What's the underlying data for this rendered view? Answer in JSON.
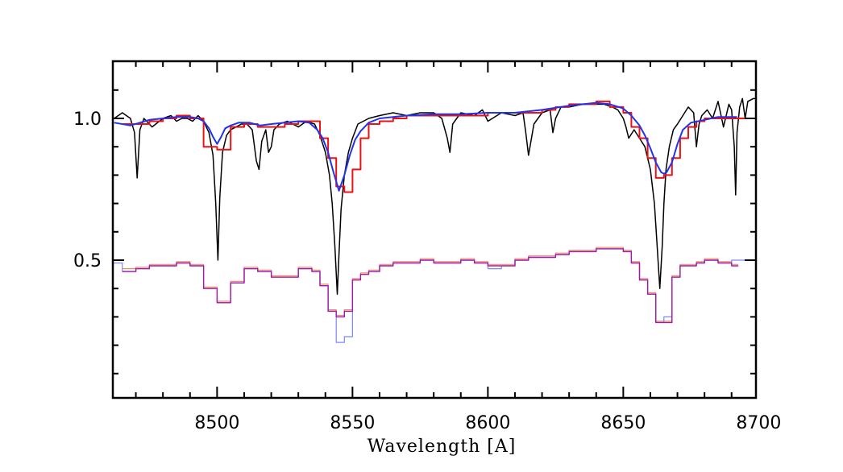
{
  "chart_data": {
    "type": "line",
    "title": "",
    "xlabel": "Wavelength [A]",
    "ylabel": "",
    "xlim": [
      8460,
      8700
    ],
    "ylim": [
      0.0,
      1.2
    ],
    "grid": false,
    "x_ticks": [
      8500,
      8550,
      8600,
      8650,
      8700
    ],
    "x_tick_labels": [
      "8500",
      "8550",
      "8600",
      "8650",
      "8700"
    ],
    "y_ticks": [
      0.5,
      1.0
    ],
    "y_tick_labels": [
      "0.5",
      "1.0"
    ],
    "colors": {
      "observed": "#000000",
      "blue_model": "#2233ee",
      "red_binned": "#ee1111",
      "lower_blue": "#7f86ff",
      "lower_purple": "#a01aa6",
      "lower_salmon": "#f08a6a"
    },
    "series": [
      {
        "style": "black-line",
        "color": "#000000",
        "x": [
          8462,
          8465,
          8468,
          8469.5,
          8470.5,
          8471.5,
          8473,
          8476,
          8480,
          8483,
          8485,
          8487,
          8489,
          8491,
          8493,
          8495,
          8497,
          8498.5,
          8499.5,
          8500.3,
          8501,
          8502,
          8503.5,
          8505,
          8507,
          8509,
          8511,
          8513,
          8514.5,
          8515.5,
          8516.5,
          8518,
          8519,
          8520,
          8521,
          8523,
          8526,
          8530,
          8533,
          8536,
          8538,
          8540,
          8541.5,
          8542.5,
          8543.5,
          8544.4,
          8545,
          8545.8,
          8547,
          8548.5,
          8550,
          8552,
          8554,
          8556,
          8560,
          8565,
          8570,
          8575,
          8580,
          8583,
          8585,
          8586,
          8587,
          8590,
          8595,
          8598,
          8600,
          8605,
          8610,
          8613,
          8614,
          8615,
          8617,
          8620,
          8623,
          8624,
          8625,
          8627,
          8630,
          8635,
          8640,
          8643,
          8646,
          8648,
          8650,
          8651,
          8652,
          8654,
          8656,
          8658,
          8660,
          8661.5,
          8662.5,
          8663.5,
          8664.4,
          8665,
          8665.8,
          8667,
          8668.5,
          8670,
          8672,
          8674,
          8676,
          8677,
          8678,
          8679,
          8681,
          8683,
          8685,
          8687,
          8689,
          8690,
          8691,
          8691.5,
          8692,
          8693,
          8694,
          8695,
          8696,
          8698,
          8700
        ],
        "y": [
          1.0,
          1.02,
          1.0,
          0.95,
          0.79,
          0.96,
          1.0,
          0.97,
          1.0,
          1.01,
          0.99,
          1.0,
          1.0,
          0.99,
          1.01,
          0.99,
          0.95,
          0.87,
          0.7,
          0.5,
          0.72,
          0.88,
          0.94,
          0.96,
          0.97,
          0.98,
          0.98,
          0.96,
          0.85,
          0.82,
          0.92,
          0.96,
          0.88,
          0.9,
          0.96,
          0.98,
          0.99,
          0.97,
          0.99,
          0.98,
          0.94,
          0.88,
          0.8,
          0.7,
          0.55,
          0.38,
          0.52,
          0.68,
          0.8,
          0.88,
          0.93,
          0.98,
          0.99,
          1.0,
          1.01,
          1.02,
          1.01,
          1.02,
          1.02,
          1.0,
          0.93,
          0.88,
          0.98,
          1.02,
          1.01,
          1.03,
          0.99,
          1.02,
          1.01,
          1.02,
          0.95,
          0.87,
          0.98,
          1.02,
          1.03,
          0.95,
          1.0,
          1.04,
          1.04,
          1.05,
          1.05,
          1.05,
          1.04,
          1.03,
          1.0,
          0.97,
          0.93,
          0.96,
          0.93,
          0.9,
          0.82,
          0.7,
          0.55,
          0.4,
          0.55,
          0.7,
          0.82,
          0.9,
          0.96,
          0.98,
          1.01,
          1.04,
          1.02,
          0.9,
          0.98,
          1.01,
          1.03,
          1.0,
          1.06,
          0.97,
          1.05,
          1.03,
          0.9,
          0.73,
          0.95,
          1.04,
          1.07,
          1.0,
          1.06,
          1.07,
          1.07
        ]
      },
      {
        "style": "blue-model",
        "color": "#2233ee",
        "x": [
          8462,
          8468,
          8475,
          8485,
          8490,
          8493,
          8495,
          8497,
          8498.5,
          8500,
          8501.5,
          8503,
          8505,
          8508,
          8512,
          8516,
          8520,
          8525,
          8530,
          8534,
          8537,
          8539,
          8541,
          8543,
          8545,
          8547,
          8549,
          8551,
          8553,
          8556,
          8560,
          8570,
          8580,
          8590,
          8600,
          8610,
          8620,
          8630,
          8640,
          8645,
          8650,
          8653,
          8656,
          8658,
          8660,
          8662,
          8664,
          8665,
          8666,
          8668,
          8670,
          8672,
          8675,
          8680,
          8685,
          8690,
          8692
        ],
        "y": [
          0.985,
          0.975,
          0.995,
          1.005,
          1.005,
          1.0,
          0.99,
          0.965,
          0.935,
          0.91,
          0.935,
          0.965,
          0.975,
          0.985,
          0.985,
          0.975,
          0.98,
          0.985,
          0.99,
          0.985,
          0.96,
          0.93,
          0.88,
          0.81,
          0.745,
          0.8,
          0.87,
          0.925,
          0.955,
          0.985,
          1.0,
          1.01,
          1.015,
          1.015,
          1.02,
          1.02,
          1.03,
          1.045,
          1.055,
          1.05,
          1.035,
          1.01,
          0.975,
          0.94,
          0.895,
          0.845,
          0.81,
          0.805,
          0.81,
          0.845,
          0.91,
          0.96,
          0.985,
          0.995,
          1.005,
          1.005,
          1.005
        ]
      },
      {
        "style": "red-binned",
        "color": "#ee1111",
        "x": [
          8465,
          8470,
          8475,
          8480,
          8485,
          8490,
          8495,
          8500,
          8505,
          8510,
          8515,
          8520,
          8525,
          8530,
          8535,
          8538,
          8541,
          8544,
          8547,
          8550,
          8553,
          8556,
          8560,
          8565,
          8570,
          8575,
          8580,
          8585,
          8590,
          8595,
          8600,
          8605,
          8610,
          8615,
          8620,
          8625,
          8630,
          8635,
          8640,
          8645,
          8650,
          8653,
          8656,
          8659,
          8662,
          8665,
          8668,
          8671,
          8674,
          8677,
          8680,
          8685,
          8690,
          8693
        ],
        "y": [
          0.98,
          0.98,
          0.99,
          1.0,
          1.01,
          1.0,
          0.9,
          0.89,
          0.97,
          0.98,
          0.97,
          0.97,
          0.98,
          0.99,
          0.99,
          0.93,
          0.86,
          0.76,
          0.74,
          0.82,
          0.93,
          0.98,
          0.99,
          1.0,
          1.01,
          1.01,
          1.01,
          1.01,
          1.01,
          1.01,
          1.02,
          1.02,
          1.02,
          1.02,
          1.03,
          1.04,
          1.05,
          1.05,
          1.06,
          1.04,
          1.02,
          0.97,
          0.93,
          0.86,
          0.79,
          0.8,
          0.86,
          0.93,
          0.97,
          0.99,
          1.0,
          1.0,
          1.0,
          1.0
        ]
      },
      {
        "style": "lower-blue",
        "color": "#7f86ff",
        "x": [
          8461,
          8465,
          8470,
          8475,
          8480,
          8485,
          8490,
          8495,
          8500,
          8505,
          8510,
          8515,
          8520,
          8525,
          8530,
          8535,
          8538,
          8541,
          8544,
          8547,
          8550,
          8553,
          8556,
          8560,
          8565,
          8570,
          8575,
          8580,
          8585,
          8590,
          8595,
          8600,
          8605,
          8610,
          8615,
          8620,
          8625,
          8630,
          8635,
          8640,
          8645,
          8650,
          8653,
          8656,
          8659,
          8662,
          8665,
          8668,
          8671,
          8674,
          8677,
          8680,
          8685,
          8690,
          8695,
          8699
        ],
        "y": [
          0.49,
          0.46,
          0.47,
          0.48,
          0.48,
          0.49,
          0.48,
          0.4,
          0.35,
          0.42,
          0.47,
          0.46,
          0.44,
          0.44,
          0.47,
          0.46,
          0.41,
          0.32,
          0.21,
          0.23,
          0.43,
          0.45,
          0.46,
          0.48,
          0.49,
          0.49,
          0.5,
          0.49,
          0.49,
          0.5,
          0.49,
          0.47,
          0.48,
          0.5,
          0.51,
          0.51,
          0.52,
          0.53,
          0.53,
          0.54,
          0.54,
          0.53,
          0.49,
          0.43,
          0.38,
          0.28,
          0.3,
          0.44,
          0.48,
          0.48,
          0.49,
          0.5,
          0.49,
          0.5,
          0.5,
          0.51
        ]
      },
      {
        "style": "lower-purple",
        "color": "#a01aa6",
        "x": [
          8465,
          8470,
          8475,
          8480,
          8485,
          8490,
          8495,
          8500,
          8505,
          8510,
          8515,
          8520,
          8525,
          8530,
          8535,
          8538,
          8541,
          8544,
          8547,
          8550,
          8553,
          8556,
          8560,
          8565,
          8570,
          8575,
          8580,
          8585,
          8590,
          8595,
          8600,
          8605,
          8610,
          8615,
          8620,
          8625,
          8630,
          8635,
          8640,
          8645,
          8650,
          8653,
          8656,
          8659,
          8662,
          8665,
          8668,
          8671,
          8674,
          8677,
          8680,
          8685,
          8690
        ],
        "y": [
          0.46,
          0.47,
          0.48,
          0.48,
          0.49,
          0.48,
          0.4,
          0.35,
          0.42,
          0.47,
          0.46,
          0.44,
          0.44,
          0.47,
          0.46,
          0.41,
          0.32,
          0.3,
          0.32,
          0.43,
          0.45,
          0.46,
          0.48,
          0.49,
          0.49,
          0.5,
          0.49,
          0.49,
          0.5,
          0.49,
          0.48,
          0.48,
          0.5,
          0.51,
          0.51,
          0.52,
          0.53,
          0.53,
          0.54,
          0.54,
          0.53,
          0.49,
          0.43,
          0.38,
          0.28,
          0.28,
          0.44,
          0.48,
          0.48,
          0.49,
          0.5,
          0.49,
          0.48
        ]
      },
      {
        "style": "lower-salmon",
        "color": "#f08a6a",
        "x": [
          8465,
          8470,
          8475,
          8480,
          8485,
          8490,
          8495,
          8500,
          8505,
          8510,
          8515,
          8520,
          8525,
          8530,
          8535,
          8538,
          8541,
          8544,
          8547,
          8550,
          8553,
          8556,
          8560,
          8565,
          8570,
          8575,
          8580,
          8585,
          8590,
          8595,
          8600,
          8605,
          8610,
          8615,
          8620,
          8625,
          8630,
          8635,
          8640,
          8645,
          8650,
          8653,
          8656,
          8659,
          8662,
          8665,
          8668,
          8671,
          8674,
          8677,
          8680,
          8685,
          8690
        ],
        "y": [
          0.47,
          0.475,
          0.485,
          0.485,
          0.495,
          0.485,
          0.405,
          0.355,
          0.425,
          0.475,
          0.465,
          0.445,
          0.445,
          0.475,
          0.465,
          0.415,
          0.325,
          0.305,
          0.325,
          0.435,
          0.455,
          0.465,
          0.485,
          0.495,
          0.495,
          0.505,
          0.495,
          0.495,
          0.505,
          0.495,
          0.485,
          0.485,
          0.505,
          0.515,
          0.515,
          0.525,
          0.535,
          0.535,
          0.545,
          0.545,
          0.535,
          0.495,
          0.435,
          0.385,
          0.285,
          0.285,
          0.445,
          0.485,
          0.485,
          0.495,
          0.505,
          0.495,
          0.485
        ]
      }
    ]
  }
}
